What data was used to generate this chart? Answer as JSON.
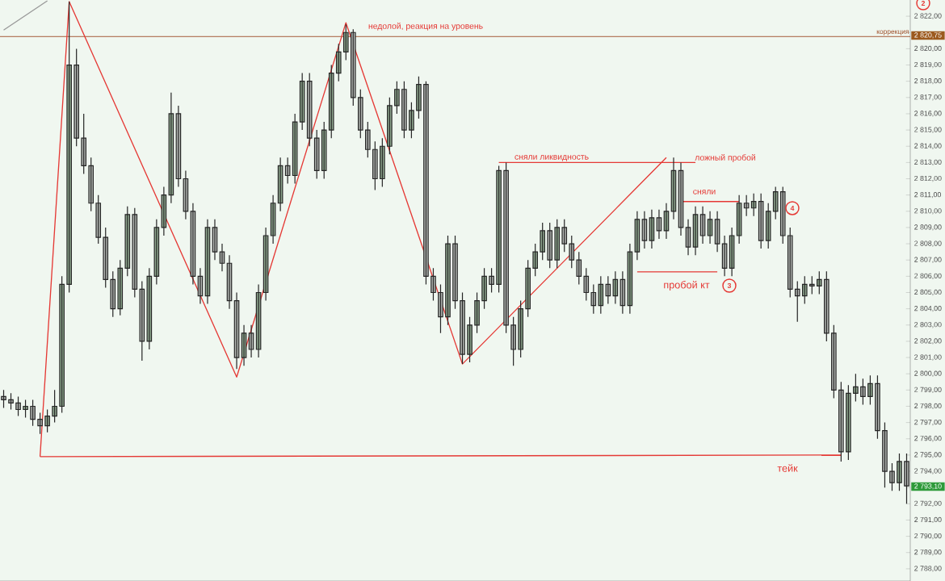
{
  "chart_data": {
    "type": "candlestick",
    "colors": [
      "#b4b8b4",
      "#b4b8b4",
      "#b4b8b4",
      "#8fa88f",
      "#b4b8b4",
      "#b4b8b4",
      "#8fa88f",
      "#8fa88f",
      "#8fa88f",
      "#8fa88f",
      "#b4b8b4",
      "#b4b8b4",
      "#b4b8b4",
      "#b4b8b4",
      "#b4b8b4",
      "#b4b8b4",
      "#8fa88f",
      "#8fa88f",
      "#b4b8b4",
      "#b4b8b4",
      "#8fa88f",
      "#8fa88f",
      "#8fa88f",
      "#8fa88f",
      "#b4b8b4",
      "#b4b8b4",
      "#b4b8b4",
      "#b4b8b4",
      "#8fa88f",
      "#b4b8b4",
      "#b4b8b4",
      "#b4b8b4",
      "#b4b8b4",
      "#8fa88f",
      "#b4b8b4",
      "#8fa88f",
      "#8fa88f",
      "#8fa88f",
      "#8fa88f",
      "#b4b8b4",
      "#8fa88f",
      "#8fa88f",
      "#b4b8b4",
      "#b4b8b4",
      "#8fa88f",
      "#8fa88f",
      "#8fa88f",
      "#8fa88f",
      "#b4b8b4",
      "#b4b8b4",
      "#b4b8b4",
      "#b4b8b4",
      "#8fa88f",
      "#8fa88f",
      "#8fa88f",
      "#b4b8b4",
      "#8fa88f",
      "#8fa88f",
      "#b4b8b4",
      "#b4b8b4",
      "#b4b8b4",
      "#8fa88f",
      "#b4b8b4",
      "#b4b8b4",
      "#8fa88f",
      "#8fa88f",
      "#8fa88f",
      "#b4b8b4",
      "#8fa88f",
      "#b4b8b4",
      "#b4b8b4",
      "#8fa88f",
      "#8fa88f",
      "#8fa88f",
      "#8fa88f",
      "#b4b8b4",
      "#8fa88f",
      "#b4b8b4",
      "#b4b8b4",
      "#b4b8b4",
      "#b4b8b4",
      "#b4b8b4",
      "#8fa88f",
      "#b4b8b4",
      "#8fa88f",
      "#b4b8b4",
      "#8fa88f",
      "#8fa88f",
      "#b4b8b4",
      "#8fa88f",
      "#b4b8b4",
      "#8fa88f",
      "#8fa88f",
      "#b4b8b4",
      "#b4b8b4",
      "#8fa88f",
      "#b4b8b4",
      "#8fa88f",
      "#b4b8b4",
      "#b4b8b4",
      "#8fa88f",
      "#8fa88f",
      "#b4b8b4",
      "#8fa88f",
      "#b4b8b4",
      "#8fa88f",
      "#8fa88f",
      "#b4b8b4",
      "#b4b8b4",
      "#b4b8b4",
      "#8fa88f",
      "#b4b8b4",
      "#8fa88f",
      "#b4b8b4",
      "#b4b8b4",
      "#b4b8b4",
      "#8fa88f",
      "#8fa88f",
      "#b4b8b4",
      "#8fa88f",
      "#b4b8b4",
      "#b4b8b4",
      "#b4b8b4",
      "#8fa88f",
      "#b4b8b4"
    ],
    "categories": [
      null,
      null,
      null,
      null,
      null,
      null,
      null,
      null,
      null,
      null,
      null,
      null,
      null,
      null,
      null,
      null,
      null,
      null,
      null,
      null,
      null,
      null,
      null,
      null,
      null,
      null,
      null,
      null,
      null,
      null,
      null,
      null,
      null,
      null,
      null,
      null,
      null,
      null,
      null,
      null,
      null,
      null,
      null,
      null,
      null,
      null,
      null,
      null,
      null,
      null,
      null,
      null,
      null,
      null,
      null,
      null,
      null,
      null,
      null,
      null,
      null,
      null,
      null,
      null,
      null,
      null,
      null,
      null,
      null,
      null,
      null,
      null,
      null,
      null,
      null,
      null,
      null,
      null,
      null,
      null,
      null,
      null,
      null,
      null,
      null,
      null,
      null,
      null,
      null,
      null,
      null,
      null,
      null,
      null,
      null,
      null,
      null,
      null,
      null,
      null,
      null,
      null,
      null,
      null,
      null,
      null,
      null,
      null,
      null,
      null,
      null,
      null,
      null,
      null,
      null,
      null,
      null,
      null,
      null,
      null,
      null,
      null,
      null,
      null,
      null
    ],
    "ohlc": [
      [
        2798.6,
        2799.0,
        2797.9,
        2798.4
      ],
      [
        2798.4,
        2798.8,
        2797.8,
        2798.2
      ],
      [
        2798.2,
        2798.6,
        2797.4,
        2797.8
      ],
      [
        2797.8,
        2798.4,
        2797.3,
        2798.0
      ],
      [
        2798.0,
        2798.4,
        2796.8,
        2797.2
      ],
      [
        2797.2,
        2797.6,
        2796.3,
        2796.8
      ],
      [
        2796.8,
        2797.8,
        2796.4,
        2797.4
      ],
      [
        2797.4,
        2799.0,
        2797.0,
        2798.0
      ],
      [
        2798.0,
        2806.0,
        2797.6,
        2805.5
      ],
      [
        2805.5,
        2822.9,
        2805.0,
        2819.0
      ],
      [
        2819.0,
        2820.0,
        2814.0,
        2814.5
      ],
      [
        2814.5,
        2816.0,
        2812.3,
        2812.8
      ],
      [
        2812.8,
        2813.3,
        2810.0,
        2810.5
      ],
      [
        2810.5,
        2811.0,
        2808.0,
        2808.4
      ],
      [
        2808.4,
        2809.0,
        2805.3,
        2805.8
      ],
      [
        2805.8,
        2806.3,
        2803.5,
        2804.0
      ],
      [
        2804.0,
        2807.0,
        2803.6,
        2806.5
      ],
      [
        2806.5,
        2810.3,
        2806.0,
        2809.8
      ],
      [
        2809.8,
        2810.2,
        2804.7,
        2805.2
      ],
      [
        2805.2,
        2805.7,
        2800.8,
        2802.0
      ],
      [
        2802.0,
        2806.5,
        2801.5,
        2806.0
      ],
      [
        2806.0,
        2809.5,
        2805.5,
        2809.0
      ],
      [
        2809.0,
        2811.5,
        2808.5,
        2811.0
      ],
      [
        2811.0,
        2817.3,
        2810.5,
        2816.0
      ],
      [
        2816.0,
        2816.5,
        2811.5,
        2812.0
      ],
      [
        2812.0,
        2812.5,
        2809.5,
        2810.0
      ],
      [
        2810.0,
        2810.5,
        2805.5,
        2806.0
      ],
      [
        2806.0,
        2806.5,
        2804.3,
        2804.8
      ],
      [
        2804.8,
        2809.5,
        2804.3,
        2809.0
      ],
      [
        2809.0,
        2809.5,
        2807.0,
        2807.5
      ],
      [
        2807.5,
        2808.0,
        2806.3,
        2806.8
      ],
      [
        2806.8,
        2807.3,
        2804.0,
        2804.5
      ],
      [
        2804.5,
        2805.0,
        2800.3,
        2801.0
      ],
      [
        2801.0,
        2803.0,
        2800.5,
        2802.5
      ],
      [
        2802.5,
        2803.0,
        2801.0,
        2801.5
      ],
      [
        2801.5,
        2805.5,
        2801.0,
        2805.0
      ],
      [
        2805.0,
        2809.0,
        2804.5,
        2808.5
      ],
      [
        2808.5,
        2811.0,
        2808.0,
        2810.5
      ],
      [
        2810.5,
        2813.3,
        2810.0,
        2812.8
      ],
      [
        2812.8,
        2813.3,
        2811.7,
        2812.2
      ],
      [
        2812.2,
        2816.0,
        2811.7,
        2815.5
      ],
      [
        2815.5,
        2818.5,
        2815.0,
        2818.0
      ],
      [
        2818.0,
        2818.5,
        2814.0,
        2814.5
      ],
      [
        2814.5,
        2815.0,
        2812.0,
        2812.5
      ],
      [
        2812.5,
        2815.5,
        2812.0,
        2815.0
      ],
      [
        2815.0,
        2819.0,
        2814.5,
        2818.5
      ],
      [
        2818.5,
        2820.3,
        2818.0,
        2819.8
      ],
      [
        2819.8,
        2821.5,
        2819.3,
        2821.0
      ],
      [
        2821.0,
        2821.2,
        2816.5,
        2817.0
      ],
      [
        2817.0,
        2817.5,
        2814.5,
        2815.0
      ],
      [
        2815.0,
        2815.5,
        2813.3,
        2813.8
      ],
      [
        2813.8,
        2814.3,
        2811.3,
        2812.0
      ],
      [
        2812.0,
        2814.5,
        2811.5,
        2814.0
      ],
      [
        2814.0,
        2817.0,
        2813.5,
        2816.5
      ],
      [
        2816.5,
        2818.0,
        2816.0,
        2817.5
      ],
      [
        2817.5,
        2818.0,
        2814.5,
        2815.0
      ],
      [
        2815.0,
        2816.7,
        2814.5,
        2816.2
      ],
      [
        2816.2,
        2818.3,
        2815.7,
        2817.8
      ],
      [
        2817.8,
        2818.0,
        2805.5,
        2806.0
      ],
      [
        2806.0,
        2806.5,
        2804.5,
        2805.0
      ],
      [
        2805.0,
        2805.5,
        2802.5,
        2803.5
      ],
      [
        2803.5,
        2808.5,
        2803.0,
        2808.0
      ],
      [
        2808.0,
        2808.5,
        2804.0,
        2804.5
      ],
      [
        2804.5,
        2805.0,
        2800.6,
        2801.2
      ],
      [
        2801.2,
        2803.5,
        2800.7,
        2803.0
      ],
      [
        2803.0,
        2805.0,
        2802.5,
        2804.5
      ],
      [
        2804.5,
        2806.5,
        2804.0,
        2806.0
      ],
      [
        2806.0,
        2806.5,
        2805.0,
        2805.5
      ],
      [
        2805.5,
        2812.8,
        2805.0,
        2812.5
      ],
      [
        2812.5,
        2813.0,
        2802.5,
        2803.0
      ],
      [
        2803.0,
        2803.5,
        2800.5,
        2801.5
      ],
      [
        2801.5,
        2804.5,
        2801.0,
        2804.0
      ],
      [
        2804.0,
        2807.0,
        2803.5,
        2806.5
      ],
      [
        2806.5,
        2808.0,
        2806.0,
        2807.5
      ],
      [
        2807.5,
        2809.3,
        2807.0,
        2808.8
      ],
      [
        2808.8,
        2809.3,
        2806.5,
        2807.0
      ],
      [
        2807.0,
        2809.5,
        2806.5,
        2809.0
      ],
      [
        2809.0,
        2809.5,
        2807.5,
        2808.0
      ],
      [
        2808.0,
        2808.5,
        2806.5,
        2807.0
      ],
      [
        2807.0,
        2807.5,
        2805.5,
        2806.0
      ],
      [
        2806.0,
        2806.5,
        2804.5,
        2805.0
      ],
      [
        2805.0,
        2805.5,
        2803.7,
        2804.2
      ],
      [
        2804.2,
        2806.0,
        2803.7,
        2805.5
      ],
      [
        2805.5,
        2806.0,
        2804.3,
        2804.8
      ],
      [
        2804.8,
        2806.3,
        2804.3,
        2805.8
      ],
      [
        2805.8,
        2806.3,
        2803.7,
        2804.2
      ],
      [
        2804.2,
        2808.0,
        2803.7,
        2807.5
      ],
      [
        2807.5,
        2810.0,
        2807.0,
        2809.5
      ],
      [
        2809.5,
        2810.0,
        2807.7,
        2808.2
      ],
      [
        2808.2,
        2810.1,
        2807.7,
        2809.6
      ],
      [
        2809.6,
        2810.1,
        2808.3,
        2808.8
      ],
      [
        2808.8,
        2810.5,
        2808.3,
        2810.0
      ],
      [
        2810.0,
        2813.3,
        2809.5,
        2812.5
      ],
      [
        2812.5,
        2813.0,
        2808.5,
        2809.0
      ],
      [
        2809.0,
        2809.5,
        2807.3,
        2807.8
      ],
      [
        2807.8,
        2810.3,
        2807.3,
        2809.8
      ],
      [
        2809.8,
        2810.3,
        2808.0,
        2808.5
      ],
      [
        2808.5,
        2810.0,
        2808.0,
        2809.5
      ],
      [
        2809.5,
        2810.0,
        2807.5,
        2808.0
      ],
      [
        2808.0,
        2808.5,
        2806.0,
        2806.5
      ],
      [
        2806.5,
        2809.0,
        2806.0,
        2808.5
      ],
      [
        2808.5,
        2811.0,
        2808.0,
        2810.5
      ],
      [
        2810.5,
        2811.0,
        2809.7,
        2810.2
      ],
      [
        2810.2,
        2811.1,
        2809.7,
        2810.6
      ],
      [
        2810.6,
        2811.1,
        2807.7,
        2808.2
      ],
      [
        2808.2,
        2810.5,
        2807.7,
        2810.0
      ],
      [
        2810.0,
        2811.5,
        2809.5,
        2811.2
      ],
      [
        2811.2,
        2811.5,
        2808.0,
        2808.5
      ],
      [
        2808.5,
        2809.0,
        2804.7,
        2805.2
      ],
      [
        2805.2,
        2805.7,
        2803.2,
        2804.8
      ],
      [
        2804.8,
        2806.0,
        2804.3,
        2805.5
      ],
      [
        2805.5,
        2806.0,
        2804.9,
        2805.4
      ],
      [
        2805.4,
        2806.3,
        2804.9,
        2805.8
      ],
      [
        2805.8,
        2806.3,
        2802.0,
        2802.5
      ],
      [
        2802.5,
        2803.0,
        2798.5,
        2799.0
      ],
      [
        2799.0,
        2799.5,
        2794.6,
        2795.2
      ],
      [
        2795.2,
        2799.3,
        2794.7,
        2798.8
      ],
      [
        2798.8,
        2800.0,
        2798.3,
        2799.2
      ],
      [
        2799.2,
        2799.7,
        2798.1,
        2798.6
      ],
      [
        2798.6,
        2799.9,
        2798.1,
        2799.4
      ],
      [
        2799.4,
        2799.9,
        2796.0,
        2796.5
      ],
      [
        2796.5,
        2797.0,
        2793.0,
        2794.0
      ],
      [
        2794.0,
        2794.5,
        2792.8,
        2793.3
      ],
      [
        2793.3,
        2795.1,
        2792.8,
        2794.6
      ],
      [
        2794.6,
        2795.1,
        2792.0,
        2793.1
      ]
    ],
    "ylim": [
      2787.25,
      2823
    ],
    "yticks": [
      {
        "value": 2788,
        "label": "2 788,00"
      },
      {
        "value": 2789,
        "label": "2 789,00"
      },
      {
        "value": 2790,
        "label": "2 790,00"
      },
      {
        "value": 2791,
        "label": "2 791,00"
      },
      {
        "value": 2792,
        "label": "2 792,00"
      },
      {
        "value": 2793,
        "label": null
      },
      {
        "value": 2794,
        "label": "2 794,00"
      },
      {
        "value": 2795,
        "label": "2 795,00"
      },
      {
        "value": 2796,
        "label": "2 796,00"
      },
      {
        "value": 2797,
        "label": "2 797,00"
      },
      {
        "value": 2798,
        "label": "2 798,00"
      },
      {
        "value": 2799,
        "label": "2 799,00"
      },
      {
        "value": 2800,
        "label": "2 800,00"
      },
      {
        "value": 2801,
        "label": "2 801,00"
      },
      {
        "value": 2802,
        "label": "2 802,00"
      },
      {
        "value": 2803,
        "label": "2 803,00"
      },
      {
        "value": 2804,
        "label": "2 804,00"
      },
      {
        "value": 2805,
        "label": "2 805,00"
      },
      {
        "value": 2806,
        "label": "2 806,00"
      },
      {
        "value": 2807,
        "label": "2 807,00"
      },
      {
        "value": 2808,
        "label": "2 808,00"
      },
      {
        "value": 2809,
        "label": "2 809,00"
      },
      {
        "value": 2810,
        "label": "2 810,00"
      },
      {
        "value": 2811,
        "label": "2 811,00"
      },
      {
        "value": 2812,
        "label": "2 812,00"
      },
      {
        "value": 2813,
        "label": "2 813,00"
      },
      {
        "value": 2814,
        "label": "2 814,00"
      },
      {
        "value": 2815,
        "label": "2 815,00"
      },
      {
        "value": 2816,
        "label": "2 816,00"
      },
      {
        "value": 2817,
        "label": "2 817,00"
      },
      {
        "value": 2818,
        "label": "2 818,00"
      },
      {
        "value": 2819,
        "label": "2 819,00"
      },
      {
        "value": 2820,
        "label": "2 820,00"
      },
      {
        "value": 2821,
        "label": null
      },
      {
        "value": 2822,
        "label": "2 822,00"
      }
    ],
    "tick_labels": "y",
    "series": [
      {
        "type": "line",
        "color": "#999999",
        "values": [
          2821.15,
          null,
          null,
          null,
          null,
          null,
          2822.95,
          null,
          null,
          null,
          null,
          null,
          null,
          null,
          null,
          null,
          null,
          null,
          null,
          null,
          null,
          null,
          null,
          null,
          null,
          null,
          null,
          null,
          null,
          null,
          null,
          null,
          null,
          null,
          null,
          null,
          null,
          null,
          null,
          null,
          null,
          null,
          null,
          null,
          null,
          null,
          null,
          null,
          null,
          null,
          null,
          null,
          null,
          null,
          null,
          null,
          null,
          null,
          null,
          null,
          null,
          null,
          null,
          null,
          null,
          null,
          null,
          null,
          null,
          null,
          null,
          null,
          null,
          null,
          null,
          null,
          null,
          null,
          null,
          null,
          null,
          null,
          null,
          null,
          null,
          null,
          null,
          null,
          null,
          null,
          null,
          null,
          null,
          null,
          null,
          null,
          null,
          null,
          null,
          null,
          null,
          null,
          null,
          null,
          null,
          null,
          null,
          null,
          null,
          null,
          null,
          null,
          null,
          null,
          null,
          null,
          null,
          null,
          null,
          null,
          null,
          null,
          null,
          null,
          null
        ]
      },
      {
        "type": "line",
        "color": "#e53935",
        "values": [
          null,
          null,
          null,
          null,
          null,
          2794.9,
          null,
          null,
          null,
          2822.9,
          null,
          null,
          null,
          null,
          null,
          null,
          null,
          null,
          null,
          null,
          null,
          null,
          null,
          null,
          null,
          null,
          null,
          null,
          null,
          null,
          null,
          null,
          2799.8,
          null,
          null,
          null,
          null,
          null,
          null,
          null,
          null,
          null,
          null,
          null,
          null,
          null,
          null,
          2821.6,
          null,
          null,
          null,
          null,
          null,
          null,
          null,
          null,
          null,
          null,
          null,
          null,
          null,
          null,
          null,
          2800.6,
          null,
          null,
          null,
          null,
          null,
          null,
          null,
          null,
          null,
          null,
          null,
          null,
          null,
          null,
          null,
          null,
          null,
          null,
          null,
          null,
          null,
          null,
          null,
          null,
          null,
          null,
          null,
          2813.3,
          null,
          null,
          null,
          null,
          null,
          null,
          null,
          null,
          null,
          null,
          null,
          null,
          null,
          null,
          null,
          null,
          null,
          null,
          null,
          null,
          null,
          null,
          null,
          null,
          null,
          null,
          null,
          null,
          null,
          null,
          null,
          null,
          null
        ]
      },
      {
        "type": "line",
        "color": "#e53935",
        "values": [
          null,
          null,
          null,
          null,
          null,
          2794.9,
          null,
          null,
          null,
          null,
          null,
          null,
          null,
          null,
          null,
          null,
          null,
          null,
          null,
          null,
          null,
          null,
          null,
          null,
          null,
          null,
          null,
          null,
          null,
          null,
          null,
          null,
          null,
          null,
          null,
          null,
          null,
          null,
          null,
          null,
          null,
          null,
          null,
          null,
          null,
          null,
          null,
          null,
          null,
          null,
          null,
          null,
          null,
          null,
          null,
          null,
          null,
          null,
          null,
          null,
          null,
          null,
          null,
          null,
          null,
          null,
          null,
          null,
          null,
          null,
          null,
          null,
          null,
          null,
          null,
          null,
          null,
          null,
          null,
          null,
          null,
          null,
          null,
          null,
          null,
          null,
          null,
          null,
          null,
          null,
          null,
          null,
          null,
          null,
          null,
          null,
          null,
          null,
          null,
          null,
          null,
          null,
          null,
          null,
          null,
          null,
          null,
          null,
          null,
          null,
          null,
          null,
          null,
          null,
          null,
          2795.0,
          null,
          null,
          null,
          null,
          null,
          null,
          null,
          null,
          null
        ]
      },
      {
        "type": "line",
        "color": "#e53935",
        "values": [
          null,
          null,
          null,
          null,
          null,
          null,
          null,
          null,
          null,
          null,
          null,
          null,
          null,
          null,
          null,
          null,
          null,
          null,
          null,
          null,
          null,
          null,
          null,
          null,
          null,
          null,
          null,
          null,
          null,
          null,
          null,
          null,
          null,
          null,
          null,
          null,
          null,
          null,
          null,
          null,
          null,
          null,
          null,
          null,
          null,
          null,
          null,
          null,
          null,
          null,
          null,
          null,
          null,
          null,
          null,
          null,
          null,
          null,
          null,
          null,
          null,
          null,
          null,
          null,
          null,
          null,
          null,
          null,
          2813.0,
          null,
          null,
          null,
          null,
          null,
          null,
          null,
          null,
          null,
          null,
          null,
          null,
          null,
          null,
          null,
          null,
          null,
          null,
          null,
          null,
          null,
          null,
          null,
          null,
          null,
          null,
          2813.0,
          null,
          null,
          null,
          null,
          null,
          null,
          null,
          null,
          null,
          null,
          null,
          null,
          null,
          null,
          null,
          null,
          null,
          null,
          null,
          null,
          null,
          null,
          null,
          null,
          null,
          null,
          null,
          null,
          null
        ]
      },
      {
        "type": "line",
        "color": "#e53935",
        "values": [
          null,
          null,
          null,
          null,
          null,
          null,
          null,
          null,
          null,
          null,
          null,
          null,
          null,
          null,
          null,
          null,
          null,
          null,
          null,
          null,
          null,
          null,
          null,
          null,
          null,
          null,
          null,
          null,
          null,
          null,
          null,
          null,
          null,
          null,
          null,
          null,
          null,
          null,
          null,
          null,
          null,
          null,
          null,
          null,
          null,
          null,
          null,
          null,
          null,
          null,
          null,
          null,
          null,
          null,
          null,
          null,
          null,
          null,
          null,
          null,
          null,
          null,
          null,
          null,
          null,
          null,
          null,
          null,
          null,
          null,
          null,
          null,
          null,
          null,
          null,
          null,
          null,
          null,
          null,
          null,
          null,
          null,
          null,
          null,
          null,
          null,
          null,
          null,
          null,
          null,
          null,
          null,
          null,
          2810.6,
          null,
          null,
          null,
          null,
          null,
          null,
          null,
          2810.6,
          null,
          null,
          null,
          null,
          null,
          null,
          null,
          null,
          null,
          null,
          null,
          null,
          null,
          null,
          null,
          null,
          null,
          null,
          null,
          null,
          null,
          null,
          null
        ]
      },
      {
        "type": "line",
        "color": "#e53935",
        "values": [
          null,
          null,
          null,
          null,
          null,
          null,
          null,
          null,
          null,
          null,
          null,
          null,
          null,
          null,
          null,
          null,
          null,
          null,
          null,
          null,
          null,
          null,
          null,
          null,
          null,
          null,
          null,
          null,
          null,
          null,
          null,
          null,
          null,
          null,
          null,
          null,
          null,
          null,
          null,
          null,
          null,
          null,
          null,
          null,
          null,
          null,
          null,
          null,
          null,
          null,
          null,
          null,
          null,
          null,
          null,
          null,
          null,
          null,
          null,
          null,
          null,
          null,
          null,
          null,
          null,
          null,
          null,
          null,
          null,
          null,
          null,
          null,
          null,
          null,
          null,
          null,
          null,
          null,
          null,
          null,
          null,
          null,
          null,
          null,
          null,
          null,
          null,
          2806.27,
          null,
          null,
          null,
          null,
          null,
          null,
          null,
          null,
          null,
          null,
          2806.27,
          null,
          null,
          null,
          null,
          null,
          null,
          null,
          null,
          null,
          null,
          null,
          null,
          null,
          null,
          null,
          null,
          null,
          null,
          null,
          null,
          null,
          null,
          null,
          null,
          null,
          null
        ]
      }
    ],
    "ref_lines": [
      {
        "axis": "y",
        "value": 2820.75,
        "label": "коррекция",
        "color": "#a0522d"
      }
    ],
    "annotations": [
      "недолой, реакция на уровень",
      "сняли ликвидность",
      "ложный пробой",
      "сняли",
      "пробой кт",
      "тейк",
      "2",
      "3",
      "4",
      "2 820,75",
      "2 793,10"
    ]
  }
}
